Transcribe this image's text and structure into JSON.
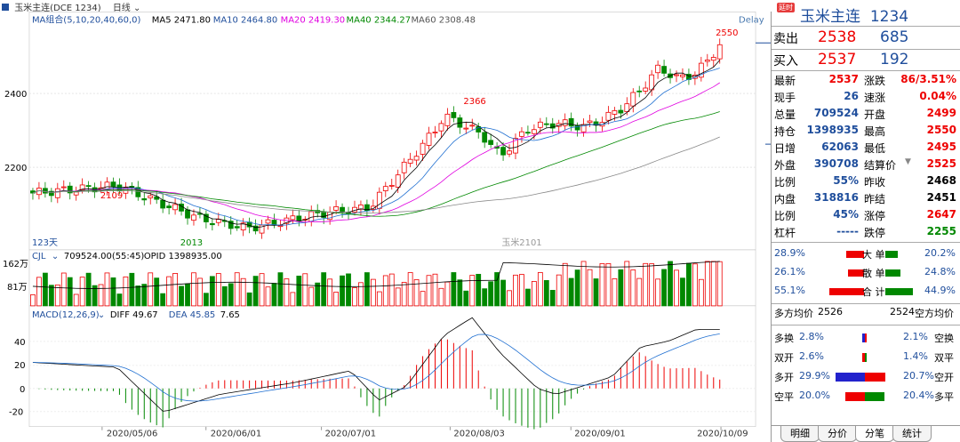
{
  "topbar": {
    "title": "玉米主连(DCE 1234)",
    "period": "日线"
  },
  "ma": {
    "label": "MA组合(5,10,20,40,60,0)",
    "ma5": "MA5 2471.80",
    "ma10": "MA10 2464.80",
    "ma20": "MA20 2419.30",
    "ma40": "MA40 2344.27",
    "ma60": "MA60 2308.48",
    "delay": "Delay"
  },
  "price_axis": {
    "labels": [
      "2400",
      "2200"
    ]
  },
  "annotations": {
    "high1": "2109",
    "low1": "2013",
    "high2": "2366",
    "high3": "2550",
    "days": "123天",
    "watermark": "玉米2101"
  },
  "cjl": {
    "label": "CJL",
    "values": "709524.00(55:45)",
    "opid": "OPID 1398935.00",
    "axis_top": "162万",
    "axis_mid": "81万"
  },
  "macd": {
    "label": "MACD(12,26,9)",
    "diff": "DIFF 49.67",
    "dea": "DEA 45.85",
    "macd_val": "7.65",
    "axis": [
      "40",
      "20",
      "0",
      "-20"
    ]
  },
  "dates": [
    "2020/05/06",
    "2020/06/01",
    "2020/07/01",
    "2020/08/03",
    "2020/09/01",
    "2020/10/09"
  ],
  "quote": {
    "badge": "延时",
    "name": "玉米主连",
    "code": "1234",
    "sell": {
      "label": "卖出",
      "price": "2538",
      "vol": "685"
    },
    "buy": {
      "label": "买入",
      "price": "2537",
      "vol": "192"
    },
    "stats": [
      {
        "l1": "最新",
        "v1": "2537",
        "c1": "red",
        "l2": "涨跌",
        "v2": "86/3.51%",
        "c2": "red"
      },
      {
        "l1": "现手",
        "v1": "26",
        "c1": "blue",
        "l2": "速涨",
        "v2": "0.04%",
        "c2": "red"
      },
      {
        "l1": "总量",
        "v1": "709524",
        "c1": "blue",
        "l2": "开盘",
        "v2": "2499",
        "c2": "red"
      },
      {
        "l1": "持仓",
        "v1": "1398935",
        "c1": "blue",
        "l2": "最高",
        "v2": "2550",
        "c2": "red"
      },
      {
        "l1": "日增",
        "v1": "62063",
        "c1": "blue",
        "l2": "最低",
        "v2": "2495",
        "c2": "red"
      },
      {
        "l1": "外盘",
        "v1": "390708",
        "c1": "blue",
        "l2": "结算价",
        "v2": "2525",
        "c2": "red"
      },
      {
        "l1": "比例",
        "v1": "55%",
        "c1": "blue",
        "l2": "昨收",
        "v2": "2468",
        "c2": "black"
      },
      {
        "l1": "内盘",
        "v1": "318816",
        "c1": "blue",
        "l2": "昨结",
        "v2": "2451",
        "c2": "black"
      },
      {
        "l1": "比例",
        "v1": "45%",
        "c1": "blue",
        "l2": "涨停",
        "v2": "2647",
        "c2": "red"
      },
      {
        "l1": "杠杆",
        "v1": "-----",
        "c1": "blue",
        "l2": "跌停",
        "v2": "2255",
        "c2": "green"
      }
    ],
    "bigsmall": [
      {
        "left": "28.9%",
        "label": "大 单",
        "right": "20.2%"
      },
      {
        "left": "26.1%",
        "label": "散 单",
        "right": "24.8%"
      },
      {
        "left": "55.1%",
        "label": "合 计",
        "right": "44.9%"
      }
    ],
    "avg": {
      "left_label": "多方均价",
      "left_val": "2526",
      "right_val": "2524",
      "right_label": "空方均价"
    },
    "flows": [
      {
        "l": "多换",
        "lv": "2.8%",
        "rv": "2.1%",
        "r": "空换"
      },
      {
        "l": "双开",
        "lv": "2.6%",
        "rv": "1.4%",
        "r": "双平"
      },
      {
        "l": "多开",
        "lv": "29.9%",
        "rv": "20.7%",
        "r": "空开"
      },
      {
        "l": "空平",
        "lv": "20.0%",
        "rv": "20.4%",
        "r": "多平"
      }
    ],
    "tabs": [
      "明细",
      "分价",
      "分笔",
      "统计"
    ]
  }
}
